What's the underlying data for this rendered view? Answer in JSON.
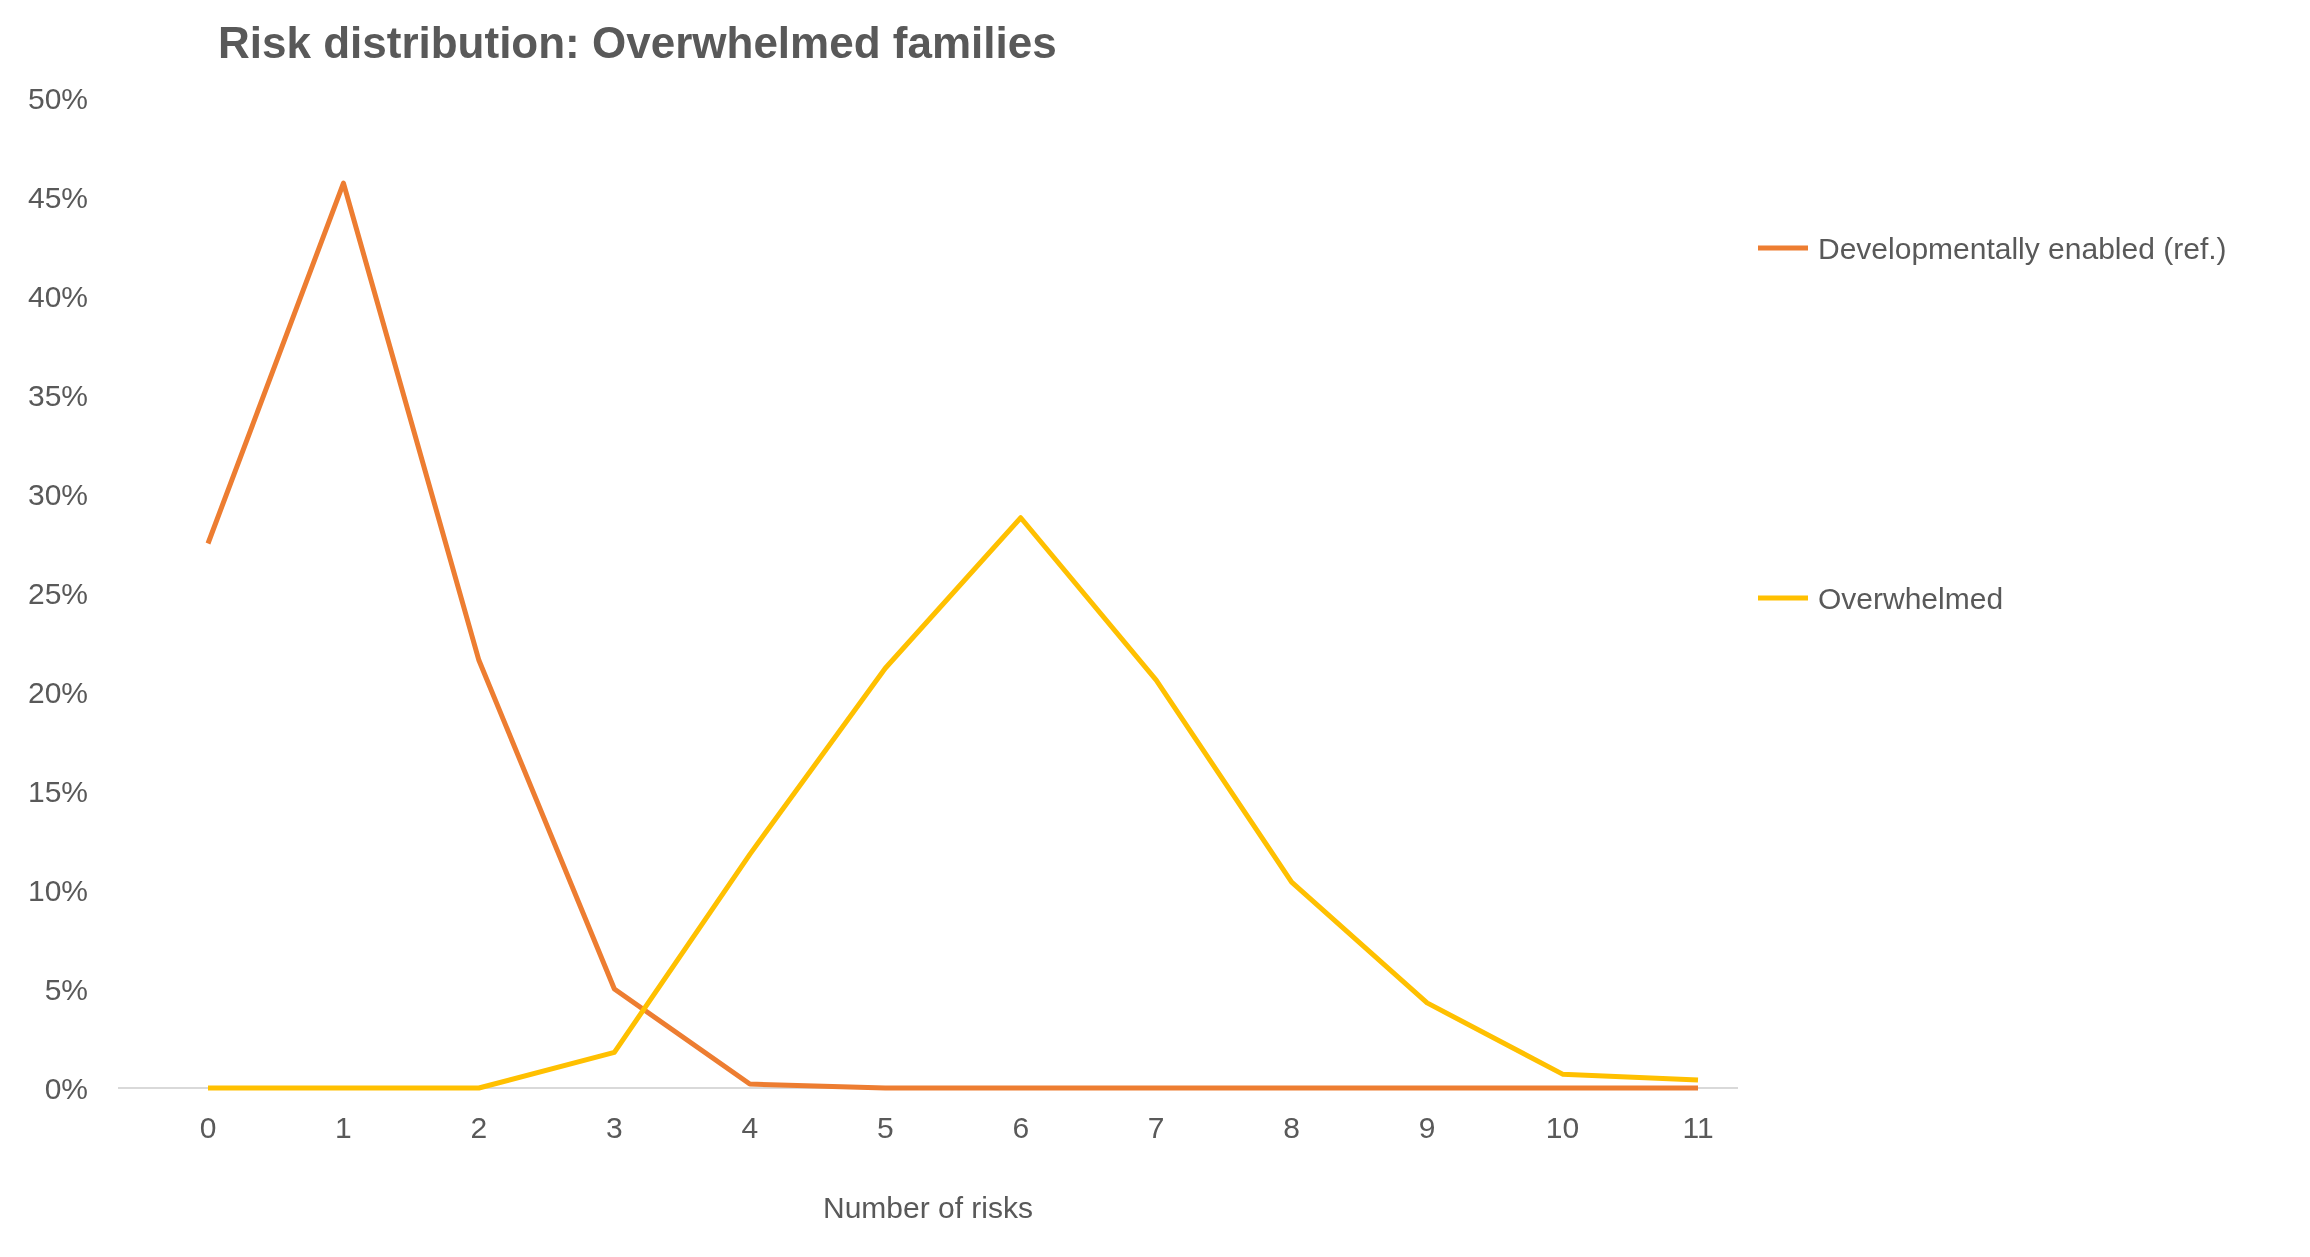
{
  "chart_data": {
    "type": "line",
    "title": "Risk distribution: Overwhelmed families",
    "xlabel": "Number of risks",
    "categories": [
      "0",
      "1",
      "2",
      "3",
      "4",
      "5",
      "6",
      "7",
      "8",
      "9",
      "10",
      "11"
    ],
    "series": [
      {
        "name": "Developmentally enabled (ref.)",
        "color": "#ed7d31",
        "values": [
          27.5,
          45.7,
          21.6,
          5.0,
          0.2,
          0,
          0,
          0,
          0,
          0,
          0,
          0
        ]
      },
      {
        "name": "Overwhelmed",
        "color": "#ffc000",
        "values": [
          0,
          0,
          0,
          1.8,
          11.8,
          21.2,
          28.8,
          20.6,
          10.4,
          4.3,
          0.7,
          0.4
        ]
      }
    ],
    "ylim": [
      0,
      50
    ],
    "yticks": [
      {
        "value": 0,
        "label": "0%"
      },
      {
        "value": 5,
        "label": "5%"
      },
      {
        "value": 10,
        "label": "10%"
      },
      {
        "value": 15,
        "label": "15%"
      },
      {
        "value": 20,
        "label": "20%"
      },
      {
        "value": 25,
        "label": "25%"
      },
      {
        "value": 30,
        "label": "30%"
      },
      {
        "value": 35,
        "label": "35%"
      },
      {
        "value": 40,
        "label": "40%"
      },
      {
        "value": 45,
        "label": "45%"
      },
      {
        "value": 50,
        "label": "50%"
      }
    ],
    "grid": false,
    "legend": "right",
    "marker": "none",
    "line_style": "solid"
  }
}
